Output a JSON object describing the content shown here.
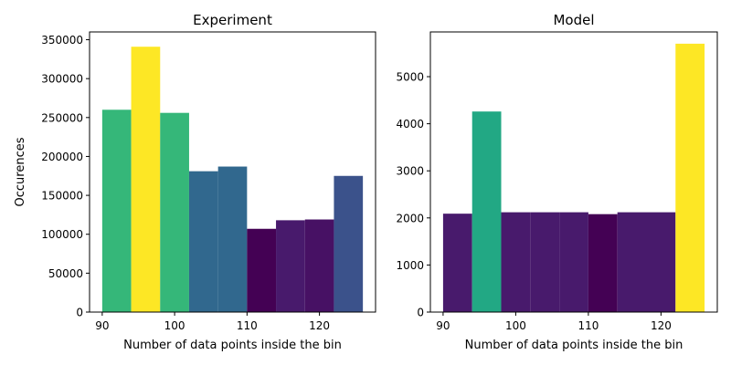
{
  "chart_data": [
    {
      "type": "bar",
      "title": "Experiment",
      "xlabel": "Number of data points inside the bin",
      "ylabel": "Occurences",
      "xlim": [
        88.25,
        127.75
      ],
      "ylim": [
        0,
        360000
      ],
      "xticks": [
        90,
        100,
        110,
        120
      ],
      "yticks": [
        0,
        50000,
        100000,
        150000,
        200000,
        250000,
        300000,
        350000
      ],
      "bin_edges": [
        90,
        94,
        98,
        102,
        106,
        110,
        114,
        118,
        122,
        126
      ],
      "values": [
        260000,
        341000,
        256000,
        181000,
        187000,
        107000,
        118000,
        119000,
        175000
      ],
      "colors": [
        "#35b779",
        "#fde725",
        "#35b779",
        "#31688e",
        "#31688e",
        "#440154",
        "#481a6c",
        "#471164",
        "#3b528b"
      ],
      "grid": false
    },
    {
      "type": "bar",
      "title": "Model",
      "xlabel": "Number of data points inside the bin",
      "ylabel": "",
      "xlim": [
        88.25,
        127.75
      ],
      "ylim": [
        0,
        5950
      ],
      "xticks": [
        90,
        100,
        110,
        120
      ],
      "yticks": [
        0,
        1000,
        2000,
        3000,
        4000,
        5000
      ],
      "bin_edges": [
        90,
        94,
        98,
        102,
        106,
        110,
        114,
        118,
        122,
        126
      ],
      "values": [
        2090,
        4260,
        2120,
        2120,
        2120,
        2080,
        2120,
        2120,
        5700
      ],
      "colors": [
        "#481a6c",
        "#22a884",
        "#481a6c",
        "#481a6c",
        "#481a6c",
        "#440154",
        "#481a6c",
        "#481a6c",
        "#fde725"
      ],
      "grid": false
    }
  ]
}
